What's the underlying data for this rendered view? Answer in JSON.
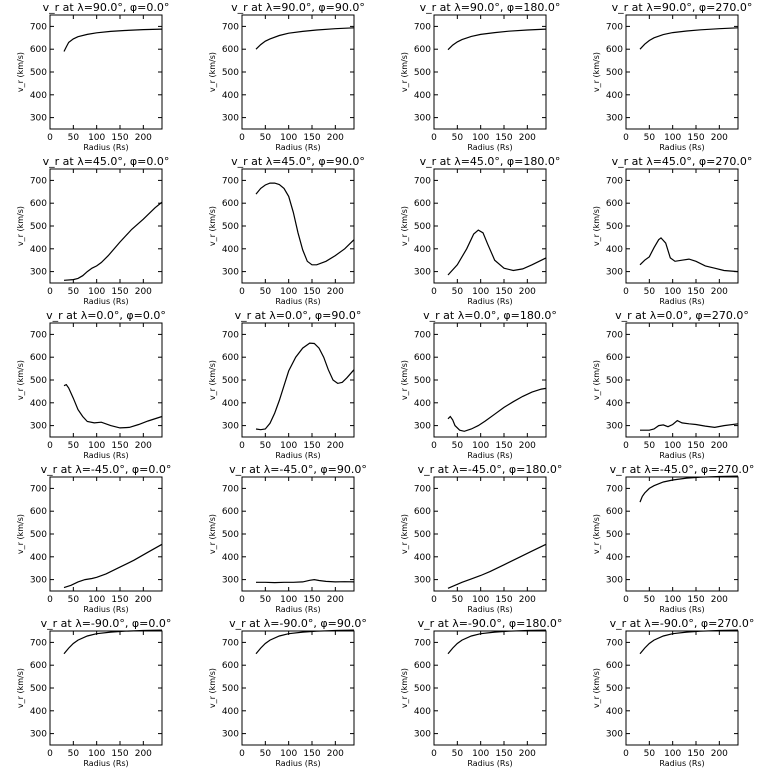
{
  "figure": {
    "xlabel": "Radius (Rs)",
    "ylabel": "v_r (km/s)"
  },
  "chart_data": [
    {
      "type": "line",
      "title": "v_r at λ=90.0°, φ=0.0°",
      "xlabel": "Radius (Rs)",
      "ylabel": "v_r (km/s)",
      "xlim": [
        0,
        240
      ],
      "ylim": [
        250,
        750
      ],
      "xticks": [
        0,
        50,
        100,
        150,
        200
      ],
      "yticks": [
        300,
        400,
        500,
        600,
        700
      ],
      "series": [
        {
          "x": [
            30,
            35,
            40,
            50,
            60,
            80,
            100,
            130,
            160,
            200,
            240
          ],
          "y": [
            590,
            610,
            630,
            645,
            655,
            665,
            672,
            678,
            682,
            686,
            688
          ]
        }
      ]
    },
    {
      "type": "line",
      "title": "v_r at λ=90.0°, φ=90.0°",
      "xlabel": "Radius (Rs)",
      "ylabel": "v_r (km/s)",
      "xlim": [
        0,
        240
      ],
      "ylim": [
        250,
        750
      ],
      "xticks": [
        0,
        50,
        100,
        150,
        200
      ],
      "yticks": [
        300,
        400,
        500,
        600,
        700
      ],
      "series": [
        {
          "x": [
            30,
            40,
            50,
            60,
            80,
            100,
            130,
            160,
            200,
            240
          ],
          "y": [
            600,
            620,
            635,
            645,
            660,
            670,
            678,
            684,
            690,
            694
          ]
        }
      ]
    },
    {
      "type": "line",
      "title": "v_r at λ=90.0°, φ=180.0°",
      "xlabel": "Radius (Rs)",
      "ylabel": "v_r (km/s)",
      "xlim": [
        0,
        240
      ],
      "ylim": [
        250,
        750
      ],
      "xticks": [
        0,
        50,
        100,
        150,
        200
      ],
      "yticks": [
        300,
        400,
        500,
        600,
        700
      ],
      "series": [
        {
          "x": [
            30,
            40,
            50,
            60,
            80,
            100,
            130,
            160,
            200,
            240
          ],
          "y": [
            598,
            618,
            632,
            642,
            656,
            665,
            673,
            679,
            684,
            688
          ]
        }
      ]
    },
    {
      "type": "line",
      "title": "v_r at λ=90.0°, φ=270.0°",
      "xlabel": "Radius (Rs)",
      "ylabel": "v_r (km/s)",
      "xlim": [
        0,
        240
      ],
      "ylim": [
        250,
        750
      ],
      "xticks": [
        0,
        50,
        100,
        150,
        200
      ],
      "yticks": [
        300,
        400,
        500,
        600,
        700
      ],
      "series": [
        {
          "x": [
            30,
            40,
            50,
            60,
            80,
            100,
            130,
            160,
            200,
            240
          ],
          "y": [
            600,
            622,
            638,
            650,
            664,
            673,
            680,
            685,
            690,
            694
          ]
        }
      ]
    },
    {
      "type": "line",
      "title": "v_r at λ=45.0°, φ=0.0°",
      "xlabel": "Radius (Rs)",
      "ylabel": "v_r (km/s)",
      "xlim": [
        0,
        240
      ],
      "ylim": [
        250,
        750
      ],
      "xticks": [
        0,
        50,
        100,
        150,
        200
      ],
      "yticks": [
        300,
        400,
        500,
        600,
        700
      ],
      "series": [
        {
          "x": [
            30,
            50,
            60,
            70,
            80,
            90,
            100,
            110,
            125,
            150,
            175,
            200,
            225,
            240
          ],
          "y": [
            262,
            265,
            270,
            282,
            300,
            315,
            325,
            340,
            370,
            430,
            485,
            530,
            580,
            605
          ]
        }
      ]
    },
    {
      "type": "line",
      "title": "v_r at λ=45.0°, φ=90.0°",
      "xlabel": "Radius (Rs)",
      "ylabel": "v_r (km/s)",
      "xlim": [
        0,
        240
      ],
      "ylim": [
        250,
        750
      ],
      "xticks": [
        0,
        50,
        100,
        150,
        200
      ],
      "yticks": [
        300,
        400,
        500,
        600,
        700
      ],
      "series": [
        {
          "x": [
            30,
            40,
            50,
            60,
            70,
            80,
            90,
            100,
            110,
            120,
            130,
            140,
            150,
            160,
            180,
            200,
            220,
            240
          ],
          "y": [
            640,
            665,
            680,
            688,
            688,
            682,
            665,
            630,
            560,
            470,
            395,
            345,
            330,
            330,
            345,
            370,
            400,
            440
          ]
        }
      ]
    },
    {
      "type": "line",
      "title": "v_r at λ=45.0°, φ=180.0°",
      "xlabel": "Radius (Rs)",
      "ylabel": "v_r (km/s)",
      "xlim": [
        0,
        240
      ],
      "ylim": [
        250,
        750
      ],
      "xticks": [
        0,
        50,
        100,
        150,
        200
      ],
      "yticks": [
        300,
        400,
        500,
        600,
        700
      ],
      "series": [
        {
          "x": [
            30,
            50,
            70,
            85,
            95,
            105,
            115,
            130,
            150,
            170,
            190,
            210,
            240
          ],
          "y": [
            285,
            330,
            400,
            465,
            482,
            470,
            420,
            350,
            315,
            305,
            312,
            330,
            360
          ]
        }
      ]
    },
    {
      "type": "line",
      "title": "v_r at λ=45.0°, φ=270.0°",
      "xlabel": "Radius (Rs)",
      "ylabel": "v_r (km/s)",
      "xlim": [
        0,
        240
      ],
      "ylim": [
        250,
        750
      ],
      "xticks": [
        0,
        50,
        100,
        150,
        200
      ],
      "yticks": [
        300,
        400,
        500,
        600,
        700
      ],
      "series": [
        {
          "x": [
            30,
            40,
            50,
            60,
            70,
            75,
            85,
            95,
            105,
            120,
            135,
            150,
            170,
            190,
            210,
            240
          ],
          "y": [
            330,
            350,
            365,
            405,
            440,
            448,
            425,
            360,
            345,
            350,
            355,
            345,
            325,
            315,
            305,
            300
          ]
        }
      ]
    },
    {
      "type": "line",
      "title": "v_r at λ=0.0°, φ=0.0°",
      "xlabel": "Radius (Rs)",
      "ylabel": "v_r (km/s)",
      "xlim": [
        0,
        240
      ],
      "ylim": [
        250,
        750
      ],
      "xticks": [
        0,
        50,
        100,
        150,
        200
      ],
      "yticks": [
        300,
        400,
        500,
        600,
        700
      ],
      "series": [
        {
          "x": [
            30,
            35,
            40,
            50,
            60,
            70,
            80,
            95,
            110,
            130,
            150,
            170,
            190,
            210,
            240
          ],
          "y": [
            475,
            480,
            465,
            420,
            370,
            340,
            318,
            312,
            315,
            300,
            290,
            292,
            305,
            320,
            340
          ]
        }
      ]
    },
    {
      "type": "line",
      "title": "v_r at λ=0.0°, φ=90.0°",
      "xlabel": "Radius (Rs)",
      "ylabel": "v_r (km/s)",
      "xlim": [
        0,
        240
      ],
      "ylim": [
        250,
        750
      ],
      "xticks": [
        0,
        50,
        100,
        150,
        200
      ],
      "yticks": [
        300,
        400,
        500,
        600,
        700
      ],
      "series": [
        {
          "x": [
            30,
            40,
            50,
            60,
            70,
            80,
            90,
            100,
            115,
            130,
            145,
            155,
            165,
            175,
            185,
            195,
            205,
            215,
            225,
            240
          ],
          "y": [
            285,
            282,
            285,
            310,
            355,
            410,
            475,
            540,
            600,
            640,
            662,
            660,
            640,
            600,
            545,
            500,
            485,
            490,
            510,
            545
          ]
        }
      ]
    },
    {
      "type": "line",
      "title": "v_r at λ=0.0°, φ=180.0°",
      "xlabel": "Radius (Rs)",
      "ylabel": "v_r (km/s)",
      "xlim": [
        0,
        240
      ],
      "ylim": [
        250,
        750
      ],
      "xticks": [
        0,
        50,
        100,
        150,
        200
      ],
      "yticks": [
        300,
        400,
        500,
        600,
        700
      ],
      "series": [
        {
          "x": [
            30,
            35,
            40,
            45,
            55,
            65,
            80,
            95,
            110,
            130,
            150,
            170,
            190,
            210,
            230,
            240
          ],
          "y": [
            330,
            340,
            325,
            300,
            280,
            275,
            285,
            300,
            320,
            350,
            380,
            405,
            428,
            447,
            460,
            463
          ]
        }
      ]
    },
    {
      "type": "line",
      "title": "v_r at λ=0.0°, φ=270.0°",
      "xlabel": "Radius (Rs)",
      "ylabel": "v_r (km/s)",
      "xlim": [
        0,
        240
      ],
      "ylim": [
        250,
        750
      ],
      "xticks": [
        0,
        50,
        100,
        150,
        200
      ],
      "yticks": [
        300,
        400,
        500,
        600,
        700
      ],
      "series": [
        {
          "x": [
            30,
            50,
            60,
            70,
            80,
            90,
            100,
            110,
            120,
            135,
            150,
            170,
            190,
            210,
            240
          ],
          "y": [
            280,
            280,
            285,
            300,
            303,
            295,
            305,
            322,
            312,
            308,
            305,
            298,
            292,
            300,
            308
          ]
        }
      ]
    },
    {
      "type": "line",
      "title": "v_r at λ=-45.0°, φ=0.0°",
      "xlabel": "Radius (Rs)",
      "ylabel": "v_r (km/s)",
      "xlim": [
        0,
        240
      ],
      "ylim": [
        250,
        750
      ],
      "xticks": [
        0,
        50,
        100,
        150,
        200
      ],
      "yticks": [
        300,
        400,
        500,
        600,
        700
      ],
      "series": [
        {
          "x": [
            30,
            45,
            60,
            75,
            90,
            100,
            120,
            150,
            180,
            210,
            240
          ],
          "y": [
            265,
            275,
            290,
            300,
            305,
            310,
            325,
            355,
            385,
            420,
            455
          ]
        }
      ]
    },
    {
      "type": "line",
      "title": "v_r at λ=-45.0°, φ=90.0°",
      "xlabel": "Radius (Rs)",
      "ylabel": "v_r (km/s)",
      "xlim": [
        0,
        240
      ],
      "ylim": [
        250,
        750
      ],
      "xticks": [
        0,
        50,
        100,
        150,
        200
      ],
      "yticks": [
        300,
        400,
        500,
        600,
        700
      ],
      "series": [
        {
          "x": [
            30,
            50,
            70,
            90,
            110,
            130,
            145,
            155,
            165,
            180,
            200,
            220,
            240
          ],
          "y": [
            288,
            288,
            287,
            288,
            288,
            290,
            297,
            300,
            296,
            292,
            290,
            291,
            290
          ]
        }
      ]
    },
    {
      "type": "line",
      "title": "v_r at λ=-45.0°, φ=180.0°",
      "xlabel": "Radius (Rs)",
      "ylabel": "v_r (km/s)",
      "xlim": [
        0,
        240
      ],
      "ylim": [
        250,
        750
      ],
      "xticks": [
        0,
        50,
        100,
        150,
        200
      ],
      "yticks": [
        300,
        400,
        500,
        600,
        700
      ],
      "series": [
        {
          "x": [
            30,
            45,
            60,
            80,
            100,
            120,
            150,
            180,
            210,
            240
          ],
          "y": [
            262,
            275,
            288,
            303,
            318,
            335,
            365,
            395,
            425,
            455
          ]
        }
      ]
    },
    {
      "type": "line",
      "title": "v_r at λ=-45.0°, φ=270.0°",
      "xlabel": "Radius (Rs)",
      "ylabel": "v_r (km/s)",
      "xlim": [
        0,
        240
      ],
      "ylim": [
        250,
        750
      ],
      "xticks": [
        0,
        50,
        100,
        150,
        200
      ],
      "yticks": [
        300,
        400,
        500,
        600,
        700
      ],
      "series": [
        {
          "x": [
            30,
            35,
            40,
            50,
            60,
            80,
            100,
            130,
            160,
            200,
            240
          ],
          "y": [
            640,
            665,
            680,
            700,
            712,
            728,
            737,
            745,
            749,
            752,
            754
          ]
        }
      ]
    },
    {
      "type": "line",
      "title": "v_r at λ=-90.0°, φ=0.0°",
      "xlabel": "Radius (Rs)",
      "ylabel": "v_r (km/s)",
      "xlim": [
        0,
        240
      ],
      "ylim": [
        250,
        750
      ],
      "xticks": [
        0,
        50,
        100,
        150,
        200
      ],
      "yticks": [
        300,
        400,
        500,
        600,
        700
      ],
      "series": [
        {
          "x": [
            30,
            40,
            50,
            60,
            80,
            100,
            130,
            160,
            200,
            240
          ],
          "y": [
            650,
            675,
            695,
            710,
            728,
            738,
            745,
            749,
            752,
            754
          ]
        }
      ]
    },
    {
      "type": "line",
      "title": "v_r at λ=-90.0°, φ=90.0°",
      "xlabel": "Radius (Rs)",
      "ylabel": "v_r (km/s)",
      "xlim": [
        0,
        240
      ],
      "ylim": [
        250,
        750
      ],
      "xticks": [
        0,
        50,
        100,
        150,
        200
      ],
      "yticks": [
        300,
        400,
        500,
        600,
        700
      ],
      "series": [
        {
          "x": [
            30,
            40,
            50,
            60,
            80,
            100,
            130,
            160,
            200,
            240
          ],
          "y": [
            650,
            675,
            695,
            710,
            728,
            738,
            745,
            749,
            752,
            754
          ]
        }
      ]
    },
    {
      "type": "line",
      "title": "v_r at λ=-90.0°, φ=180.0°",
      "xlabel": "Radius (Rs)",
      "ylabel": "v_r (km/s)",
      "xlim": [
        0,
        240
      ],
      "ylim": [
        250,
        750
      ],
      "xticks": [
        0,
        50,
        100,
        150,
        200
      ],
      "yticks": [
        300,
        400,
        500,
        600,
        700
      ],
      "series": [
        {
          "x": [
            30,
            40,
            50,
            60,
            80,
            100,
            130,
            160,
            200,
            240
          ],
          "y": [
            650,
            675,
            695,
            710,
            728,
            738,
            745,
            749,
            752,
            754
          ]
        }
      ]
    },
    {
      "type": "line",
      "title": "v_r at λ=-90.0°, φ=270.0°",
      "xlabel": "Radius (Rs)",
      "ylabel": "v_r (km/s)",
      "xlim": [
        0,
        240
      ],
      "ylim": [
        250,
        750
      ],
      "xticks": [
        0,
        50,
        100,
        150,
        200
      ],
      "yticks": [
        300,
        400,
        500,
        600,
        700
      ],
      "series": [
        {
          "x": [
            30,
            40,
            50,
            60,
            80,
            100,
            130,
            160,
            200,
            240
          ],
          "y": [
            650,
            675,
            695,
            710,
            728,
            738,
            745,
            749,
            752,
            754
          ]
        }
      ]
    }
  ]
}
